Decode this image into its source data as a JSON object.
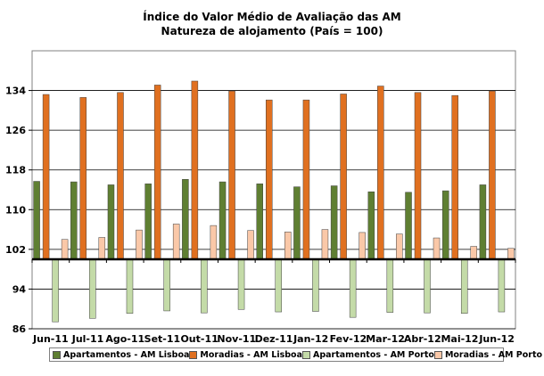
{
  "chart_data": {
    "type": "bar",
    "title": "Índice do Valor Médio de Avaliação das AM",
    "subtitle": "Natureza de alojamento (País = 100)",
    "categories": [
      "Jun-11",
      "Jul-11",
      "Ago-11",
      "Set-11",
      "Out-11",
      "Nov-11",
      "Dez-11",
      "Jan-12",
      "Fev-12",
      "Mar-12",
      "Abr-12",
      "Mai-12",
      "Jun-12"
    ],
    "ylim": [
      86,
      142
    ],
    "baseline": 100,
    "yticks": [
      86,
      94,
      102,
      110,
      118,
      126,
      134
    ],
    "grid": true,
    "legend_position": "bottom",
    "series": [
      {
        "name": "Apartamentos - AM Lisboa",
        "color": "#5f7f32",
        "values": [
          115.7,
          115.6,
          115.0,
          115.2,
          116.1,
          115.6,
          115.2,
          114.6,
          114.8,
          113.6,
          113.5,
          113.8,
          115.0
        ]
      },
      {
        "name": "Moradias - AM Lisboa",
        "color": "#e07020",
        "values": [
          133.2,
          132.6,
          133.6,
          135.1,
          135.9,
          133.9,
          132.1,
          132.1,
          133.3,
          134.9,
          133.6,
          133.0,
          133.9
        ]
      },
      {
        "name": "Apartamentos - AM Porto",
        "color": "#c4dba8",
        "values": [
          87.4,
          88.1,
          89.1,
          89.6,
          89.2,
          89.9,
          89.4,
          89.5,
          88.3,
          89.3,
          89.2,
          89.1,
          89.4
        ]
      },
      {
        "name": "Moradias - AM Porto",
        "color": "#fac8a8",
        "values": [
          104.0,
          104.4,
          105.9,
          107.1,
          106.8,
          105.8,
          105.5,
          106.0,
          105.4,
          105.1,
          104.3,
          102.6,
          102.2
        ]
      }
    ]
  }
}
